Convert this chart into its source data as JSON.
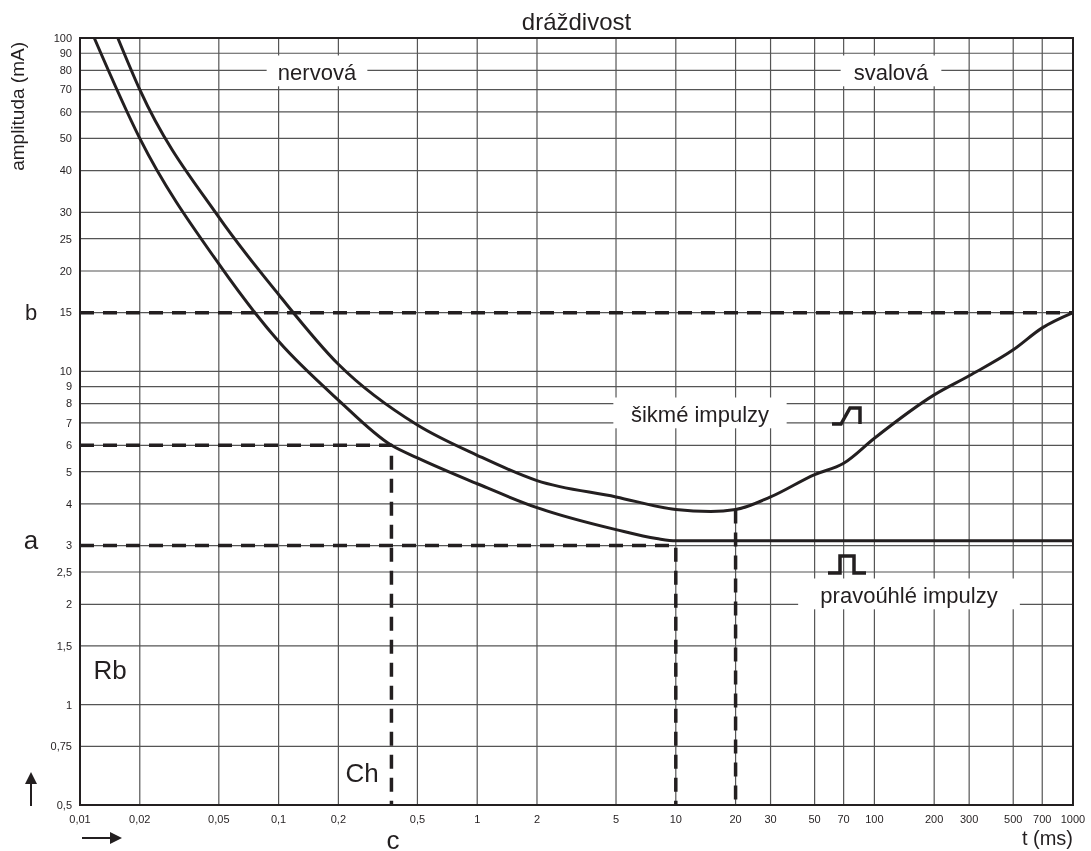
{
  "chart_data": {
    "type": "line",
    "title": "dráždivost",
    "xlabel": "t (ms)",
    "ylabel": "amplituda (mA)",
    "log": "xy",
    "grid": true,
    "marker": "none",
    "xlim": [
      0.01,
      1000
    ],
    "ylim": [
      0.5,
      100
    ],
    "xticks": [
      {
        "value": 0.01,
        "label": "0,01"
      },
      {
        "value": 0.02,
        "label": "0,02"
      },
      {
        "value": 0.05,
        "label": "0,05"
      },
      {
        "value": 0.1,
        "label": "0,1"
      },
      {
        "value": 0.2,
        "label": "0,2"
      },
      {
        "value": 0.5,
        "label": "0,5"
      },
      1,
      2,
      5,
      10,
      20,
      30,
      50,
      70,
      100,
      200,
      300,
      500,
      700,
      1000
    ],
    "yticks": [
      {
        "value": 0.5,
        "label": "0,5"
      },
      {
        "value": 0.75,
        "label": "0,75"
      },
      1,
      {
        "value": 1.5,
        "label": "1,5"
      },
      2,
      {
        "value": 2.5,
        "label": "2,5"
      },
      3,
      4,
      5,
      6,
      7,
      8,
      9,
      10,
      15,
      20,
      25,
      30,
      40,
      50,
      60,
      70,
      80,
      90,
      100
    ],
    "series": [
      {
        "color": "#231f20",
        "line_style": "solid",
        "x": [
          0.0118,
          0.02,
          0.05,
          0.1,
          0.2,
          0.37,
          0.5,
          1,
          2,
          5,
          8,
          10,
          100,
          1000
        ],
        "values": [
          100,
          50,
          21,
          12.3,
          8.2,
          6,
          5.5,
          4.6,
          3.9,
          3.35,
          3.15,
          3.1,
          3.1,
          3.1
        ]
      },
      {
        "color": "#231f20",
        "line_style": "solid",
        "x": [
          0.0155,
          0.02,
          0.05,
          0.1,
          0.2,
          0.5,
          1,
          2,
          5,
          10,
          15,
          20,
          30,
          50,
          70,
          100,
          200,
          300,
          500,
          700,
          1000
        ],
        "values": [
          100,
          70,
          29,
          17,
          10.5,
          6.9,
          5.6,
          4.7,
          4.2,
          3.85,
          3.8,
          3.85,
          4.2,
          4.9,
          5.3,
          6.3,
          8.5,
          9.7,
          11.6,
          13.5,
          15
        ]
      },
      {
        "color": "#231f20",
        "line_style": "dashed",
        "x": [
          0.01,
          0.37,
          0.37
        ],
        "values": [
          6,
          6,
          0.5
        ]
      },
      {
        "color": "#231f20",
        "line_style": "dashed",
        "x": [
          0.01,
          10,
          10
        ],
        "values": [
          3,
          3,
          0.5
        ]
      },
      {
        "color": "#231f20",
        "line_style": "dashed",
        "x": [
          20,
          20
        ],
        "values": [
          3.85,
          0.5
        ]
      }
    ],
    "ref_lines": [
      {
        "axis": "y",
        "value": 15,
        "label": "b",
        "color": "#231f20",
        "line_style": "dashed"
      }
    ],
    "annotations": [
      "nervová",
      "svalová",
      "šikmé impulzy",
      "pravoúhlé impulzy",
      "Rb",
      "Ch",
      "a",
      "c"
    ]
  }
}
